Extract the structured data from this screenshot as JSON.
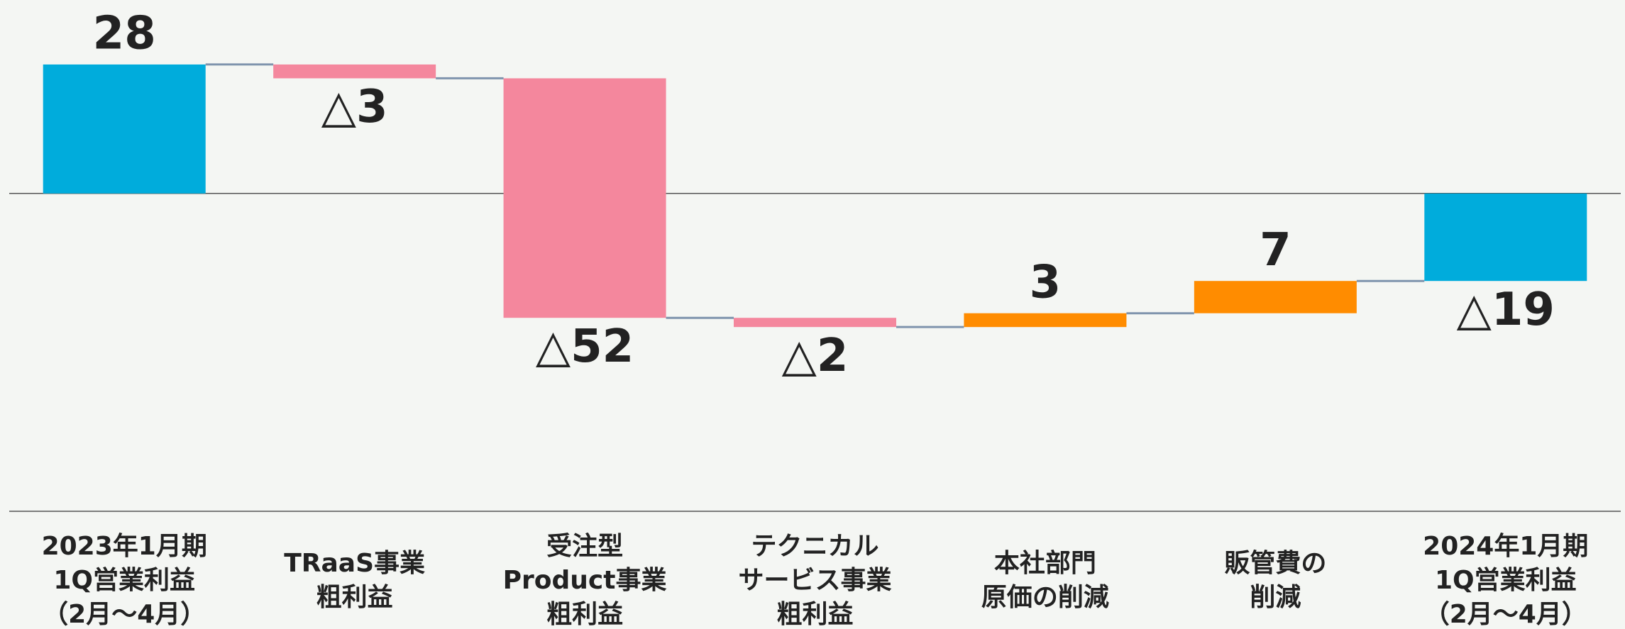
{
  "chart_data": {
    "type": "waterfall",
    "categories": [
      "2023年1月期\n1Q営業利益\n（2月〜4月）",
      "TRaaS事業\n粗利益",
      "受注型\nProduct事業\n粗利益",
      "テクニカル\nサービス事業\n粗利益",
      "本社部門\n原価の削減",
      "販管費の\n削減",
      "2024年1月期\n1Q営業利益\n（2月〜4月）"
    ],
    "values": [
      28,
      -3,
      -52,
      -2,
      3,
      7,
      -19
    ],
    "value_labels": [
      "28",
      "△3",
      "△52",
      "△2",
      "3",
      "7",
      "△19"
    ],
    "total_color": "#00acdc",
    "decrease_color": "#f4879d",
    "increase_color": "#ff8c00",
    "connector_color": "#7f94ad",
    "ylim": [
      -69,
      42
    ]
  }
}
